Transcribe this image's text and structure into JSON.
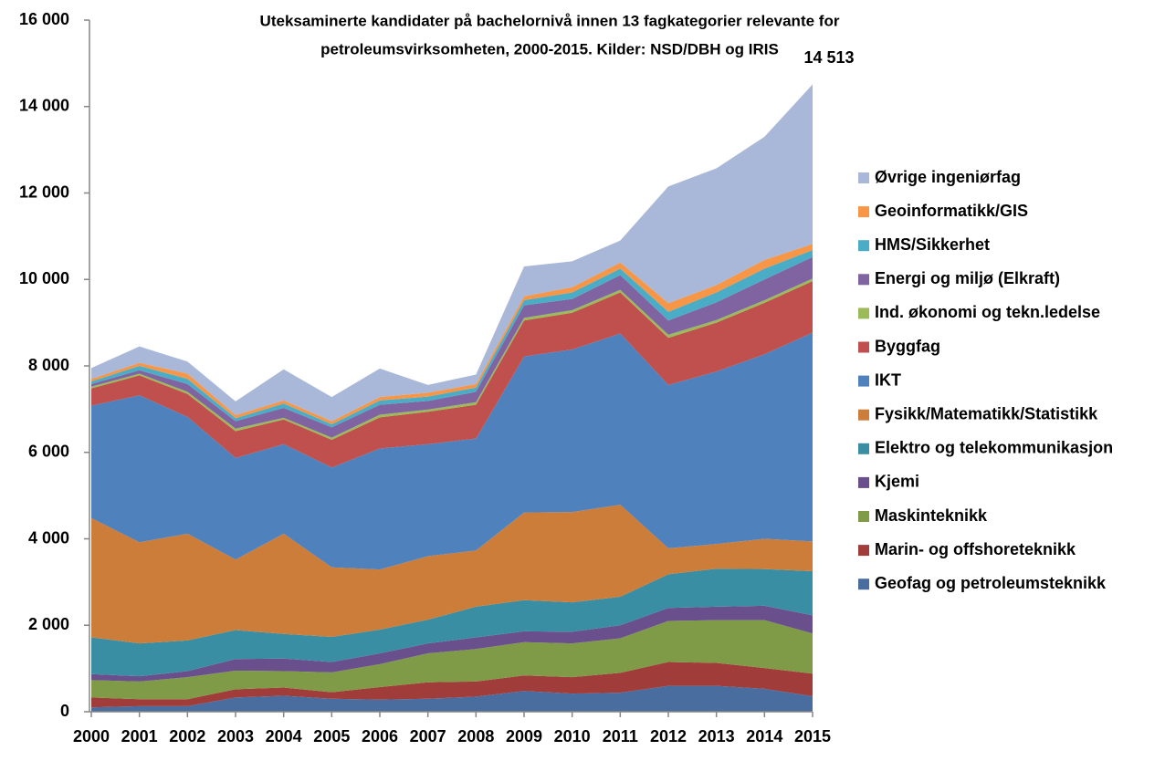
{
  "chart_data": {
    "type": "stacked_area",
    "title": "Uteksaminerte kandidater på bachelornivå innen 13 fagkategorier relevante for",
    "subtitle": "petroleumsvirksomheten, 2000-2015. Kilder: NSD/DBH og IRIS",
    "x": [
      2000,
      2001,
      2002,
      2003,
      2004,
      2005,
      2006,
      2007,
      2008,
      2009,
      2010,
      2011,
      2012,
      2013,
      2014,
      2015
    ],
    "xlim": [
      2000,
      2015
    ],
    "xticks": [
      2000,
      2001,
      2002,
      2003,
      2004,
      2005,
      2006,
      2007,
      2008,
      2009,
      2010,
      2011,
      2012,
      2013,
      2014,
      2015
    ],
    "ylim": [
      0,
      16000
    ],
    "yticks": [
      0,
      {
        "value": 2000,
        "label": "2 000"
      },
      {
        "value": 4000,
        "label": "4 000"
      },
      {
        "value": 6000,
        "label": "6 000"
      },
      {
        "value": 8000,
        "label": "8 000"
      },
      {
        "value": 10000,
        "label": "10 000"
      },
      {
        "value": 12000,
        "label": "12 000"
      },
      {
        "value": 14000,
        "label": "14 000"
      },
      {
        "value": 16000,
        "label": "16 000"
      }
    ],
    "grid": false,
    "legend": "right",
    "total_label": {
      "value": 14513,
      "label": "14 513"
    },
    "series": [
      {
        "name": "Geofag og petroleumsteknikk",
        "color": "#4a6d9f",
        "values": [
          100,
          130,
          130,
          330,
          370,
          300,
          280,
          300,
          350,
          480,
          420,
          440,
          600,
          600,
          530,
          360
        ]
      },
      {
        "name": "Marin- og offshoreteknikk",
        "color": "#a03c39",
        "values": [
          230,
          160,
          160,
          190,
          190,
          150,
          290,
          380,
          350,
          360,
          380,
          460,
          550,
          530,
          480,
          520
        ]
      },
      {
        "name": "Maskinteknikk",
        "color": "#7f9b47",
        "values": [
          400,
          410,
          510,
          430,
          380,
          460,
          530,
          670,
          750,
          770,
          780,
          800,
          950,
          990,
          1110,
          930
        ]
      },
      {
        "name": "Kjemi",
        "color": "#69508c",
        "values": [
          140,
          120,
          140,
          270,
          290,
          240,
          250,
          230,
          270,
          250,
          270,
          300,
          300,
          310,
          330,
          420
        ]
      },
      {
        "name": "Elektro og telekommunikasjon",
        "color": "#3a8ea3",
        "values": [
          850,
          760,
          710,
          670,
          570,
          580,
          550,
          550,
          710,
          720,
          680,
          660,
          780,
          880,
          850,
          1020
        ]
      },
      {
        "name": "Fysikk/Matematikk/Statistikk",
        "color": "#cc7d3a",
        "values": [
          2760,
          2340,
          2470,
          1630,
          2320,
          1610,
          1390,
          1470,
          1300,
          2030,
          2090,
          2130,
          600,
          570,
          700,
          690
        ]
      },
      {
        "name": "IKT",
        "color": "#4f81bd",
        "values": [
          2600,
          3400,
          2700,
          2350,
          2070,
          2310,
          2800,
          2590,
          2590,
          3610,
          3760,
          3960,
          3780,
          3990,
          4270,
          4830
        ]
      },
      {
        "name": "Byggfag",
        "color": "#c0504d",
        "values": [
          400,
          460,
          530,
          620,
          570,
          640,
          720,
          750,
          780,
          830,
          850,
          950,
          1090,
          1130,
          1190,
          1190
        ]
      },
      {
        "name": "Ind. økonomi og tekn.ledelse",
        "color": "#9bbb59",
        "values": [
          40,
          40,
          50,
          60,
          40,
          50,
          60,
          50,
          60,
          60,
          60,
          60,
          70,
          60,
          60,
          60
        ]
      },
      {
        "name": "Energi og miljø (Elkraft)",
        "color": "#8064a2",
        "values": [
          60,
          80,
          180,
          170,
          230,
          240,
          230,
          200,
          240,
          290,
          260,
          340,
          330,
          410,
          480,
          500
        ]
      },
      {
        "name": "HMS/Sikkerhet",
        "color": "#4bacc6",
        "values": [
          60,
          100,
          120,
          70,
          100,
          70,
          100,
          100,
          100,
          120,
          150,
          150,
          200,
          230,
          250,
          160
        ]
      },
      {
        "name": "Geoinformatikk/GIS",
        "color": "#f79646",
        "values": [
          60,
          70,
          120,
          70,
          70,
          70,
          80,
          90,
          80,
          90,
          120,
          140,
          200,
          170,
          200,
          140
        ]
      },
      {
        "name": "Øvrige ingeniørfag",
        "color": "#a9b8d8",
        "values": [
          250,
          380,
          280,
          320,
          720,
          560,
          660,
          180,
          220,
          690,
          600,
          510,
          2700,
          2700,
          2850,
          3693
        ]
      }
    ]
  }
}
